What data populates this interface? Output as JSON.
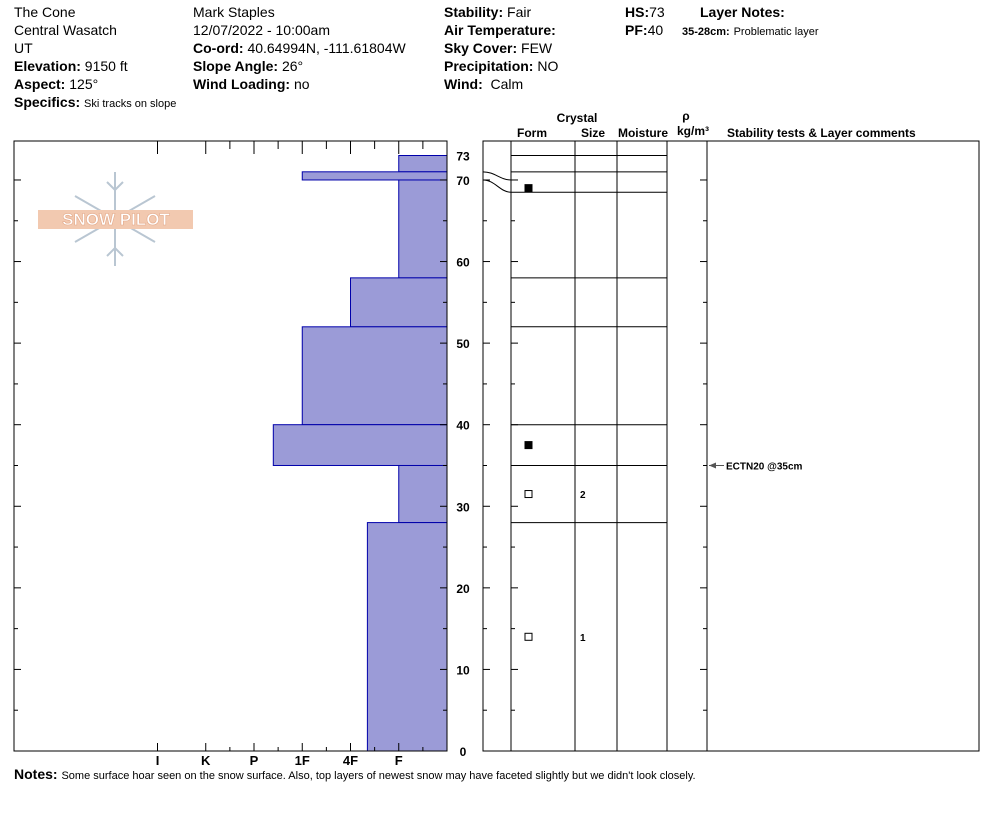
{
  "header": {
    "location": "The Cone",
    "range": "Central Wasatch",
    "state": "UT",
    "elevation_label": "Elevation:",
    "elevation": "9150 ft",
    "aspect_label": "Aspect:",
    "aspect": "125°",
    "specifics_label": "Specifics:",
    "specifics": "Ski tracks on slope",
    "observer": "Mark Staples",
    "datetime": "12/07/2022 - 10:00am",
    "coord_label": "Co-ord:",
    "coord": "40.64994N, -111.61804W",
    "slope_label": "Slope Angle:",
    "slope": "26°",
    "wind_loading_label": "Wind Loading:",
    "wind_loading": "no",
    "stability_label": "Stability:",
    "stability": "Fair",
    "air_temp_label": "Air Temperature:",
    "air_temp": "",
    "sky_label": "Sky Cover:",
    "sky": "FEW",
    "precip_label": "Precipitation:",
    "precip": "NO",
    "wind_label": "Wind:",
    "wind": "Calm",
    "hs_label": "HS:",
    "hs": "73",
    "pf_label": "PF:",
    "pf": "40",
    "layer_notes_label": "Layer Notes:",
    "layer_note_range": "35-28cm:",
    "layer_note_text": "Problematic layer"
  },
  "notes": {
    "label": "Notes:",
    "text": "Some surface hoar seen on the snow surface. Also, top layers of newest snow may have faceted slightly but we didn't look closely."
  },
  "logo": {
    "text": "SNOW PILOT"
  },
  "columns": {
    "crystal": "Crystal",
    "form": "Form",
    "size": "Size",
    "moisture": "Moisture",
    "rho": "ρ",
    "density_unit": "kg/m³",
    "comments": "Stability tests & Layer comments"
  },
  "chart_data": {
    "type": "bar",
    "orientation": "horizontal",
    "title": "",
    "xlabel": "",
    "ylabel": "",
    "x_categories": [
      "I",
      "K",
      "P",
      "1F",
      "4F",
      "F"
    ],
    "hardness_scale": {
      "I": 6,
      "K": 5,
      "P": 4,
      "1F": 3,
      "4F": 2,
      "F": 1
    },
    "ylim": [
      0,
      73
    ],
    "y_ticks": [
      0,
      10,
      20,
      30,
      40,
      50,
      60,
      70,
      73
    ],
    "colors": {
      "bar_fill": "#9b9bd7",
      "bar_edge": "#0000aa"
    },
    "layers": [
      {
        "top": 73,
        "bottom": 71,
        "hardness": 1
      },
      {
        "top": 71,
        "bottom": 70,
        "hardness": 3
      },
      {
        "top": 70,
        "bottom": 58,
        "hardness": 1
      },
      {
        "top": 58,
        "bottom": 52,
        "hardness": 2
      },
      {
        "top": 52,
        "bottom": 40,
        "hardness": 3
      },
      {
        "top": 40,
        "bottom": 35,
        "hardness": 3.6
      },
      {
        "top": 35,
        "bottom": 28,
        "hardness": 1
      },
      {
        "top": 28,
        "bottom": 0,
        "hardness": 1.65
      }
    ],
    "layer_boundaries": [
      73,
      71,
      68.5,
      58,
      52,
      40,
      35,
      28
    ],
    "grain_marks": [
      {
        "height": 69,
        "filled": true,
        "size": ""
      },
      {
        "height": 37.5,
        "filled": true,
        "size": ""
      },
      {
        "height": 31.5,
        "filled": false,
        "size": "2"
      },
      {
        "height": 14,
        "filled": false,
        "size": "1"
      }
    ],
    "stability_tests": [
      {
        "height": 35,
        "label": "ECTN20 @35cm"
      }
    ]
  }
}
